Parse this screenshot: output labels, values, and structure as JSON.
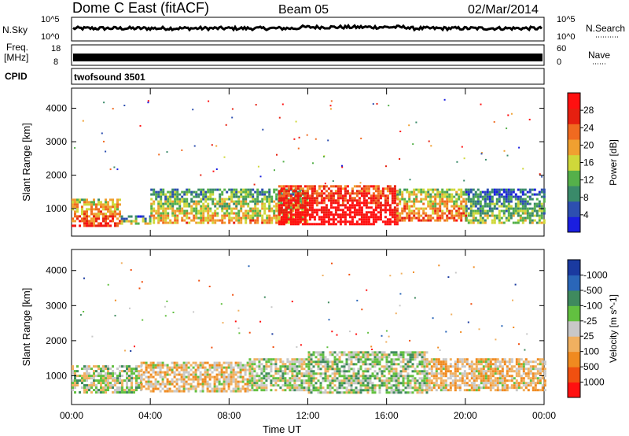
{
  "header": {
    "station": "Dome C East (fitACF)",
    "beam": "Beam 05",
    "date": "02/Mar/2014"
  },
  "strips": {
    "nsky": {
      "label": "N.Sky",
      "tick_top": "10^5",
      "tick_bottom": "10^0"
    },
    "nsearch": {
      "label": "N.Search",
      "tick_top": "10^5",
      "tick_bottom": "10^0"
    },
    "freq": {
      "label_line1": "Freq.",
      "label_line2": "[MHz]",
      "tick_top": "18",
      "tick_bottom": "8"
    },
    "nave": {
      "label": "Nave",
      "tick_top": "60",
      "tick_bottom": "0"
    },
    "cpid": {
      "label": "CPID",
      "program": "twofsound 3501"
    }
  },
  "colors": {
    "power": [
      "#1a1ee0",
      "#2d4fb0",
      "#3a8a6a",
      "#55b04a",
      "#cfd83a",
      "#f0a030",
      "#f06a20",
      "#e62010",
      "#ff1010"
    ],
    "velocity": [
      "#1a3aa0",
      "#2a66b8",
      "#3f8a5e",
      "#62c040",
      "#c8c8c8",
      "#f0b060",
      "#f08a20",
      "#f05010",
      "#ff1010"
    ]
  },
  "chart_data": [
    {
      "type": "heatmap",
      "title": "",
      "xlabel": "",
      "ylabel": "Slant Range [km]",
      "x_ticks": [
        "00:00",
        "04:00",
        "08:00",
        "12:00",
        "16:00",
        "20:00",
        "00:00"
      ],
      "y_ticks": [
        "1000",
        "2000",
        "3000",
        "4000"
      ],
      "xlim": [
        0,
        24
      ],
      "ylim": [
        180,
        4600
      ],
      "colorbar": {
        "label": "Power [dB]",
        "ticks": [
          "4",
          "8",
          "12",
          "16",
          "20",
          "24",
          "28"
        ],
        "range": [
          0,
          30
        ]
      },
      "bands": [
        {
          "t": [
            0,
            2.5
          ],
          "r": [
            500,
            1300
          ],
          "value": 20
        },
        {
          "t": [
            2.5,
            4
          ],
          "r": [
            550,
            800
          ],
          "value": 12
        },
        {
          "t": [
            4,
            12
          ],
          "r": [
            600,
            1600
          ],
          "value": 14
        },
        {
          "t": [
            10.5,
            16.5
          ],
          "r": [
            550,
            1700
          ],
          "value": 28
        },
        {
          "t": [
            16.5,
            20
          ],
          "r": [
            650,
            1600
          ],
          "value": 18
        },
        {
          "t": [
            20,
            24
          ],
          "r": [
            550,
            1600
          ],
          "value": 10
        }
      ]
    },
    {
      "type": "heatmap",
      "title": "",
      "xlabel": "Time UT",
      "ylabel": "Slant Range [km]",
      "x_ticks": [
        "00:00",
        "04:00",
        "08:00",
        "12:00",
        "16:00",
        "20:00",
        "00:00"
      ],
      "y_ticks": [
        "1000",
        "2000",
        "3000",
        "4000"
      ],
      "xlim": [
        0,
        24
      ],
      "ylim": [
        180,
        4600
      ],
      "colorbar": {
        "label": "Velocity [m s^-1]",
        "ticks": [
          "1000",
          "500",
          "100",
          "25",
          "-25",
          "-100",
          "-500",
          "-1000"
        ],
        "range": [
          -1000,
          1000
        ]
      },
      "bands": [
        {
          "t": [
            0,
            3.5
          ],
          "r": [
            500,
            1300
          ],
          "value": 80
        },
        {
          "t": [
            3.5,
            9
          ],
          "r": [
            550,
            1400
          ],
          "value": -150
        },
        {
          "t": [
            9,
            12
          ],
          "r": [
            600,
            1500
          ],
          "value": 60
        },
        {
          "t": [
            12,
            18
          ],
          "r": [
            550,
            1700
          ],
          "value": 120
        },
        {
          "t": [
            18,
            24
          ],
          "r": [
            600,
            1500
          ],
          "value": -180
        }
      ]
    }
  ]
}
